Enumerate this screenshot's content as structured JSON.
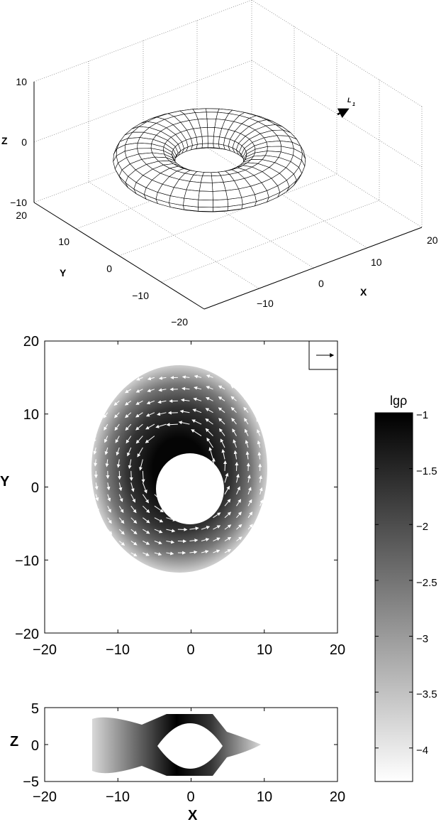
{
  "chart_data": [
    {
      "type": "surface3d",
      "xlabel": "X",
      "ylabel": "Y",
      "zlabel": "Z",
      "xlim": [
        -20,
        20
      ],
      "ylim": [
        -20,
        20
      ],
      "zlim": [
        -10,
        10
      ],
      "xticks": [
        "−10",
        "0",
        "10",
        "20"
      ],
      "yticks": [
        "20",
        "10",
        "0",
        "−10",
        "−20"
      ],
      "zticks": [
        "10",
        "0",
        "−10"
      ],
      "grid": true,
      "surface": {
        "inner_radius": 5,
        "outer_radius": 14,
        "height_range": [
          -4,
          4
        ]
      },
      "annotation": {
        "label": "L",
        "subscript": "1"
      }
    },
    {
      "type": "heatmap",
      "plane": "XY",
      "ylabel": "Y",
      "xlim": [
        -20,
        20
      ],
      "ylim": [
        -20,
        20
      ],
      "xticks": [
        "−20",
        "−10",
        "0",
        "10",
        "20"
      ],
      "yticks": [
        "20",
        "10",
        "0",
        "−10",
        "−20"
      ],
      "field": {
        "center": [
          -1.5,
          2.5
        ],
        "inner_radius": 4.5,
        "outer_radius": 13.5
      },
      "vectors": "velocity-arrows",
      "reference_arrow": true
    },
    {
      "type": "heatmap",
      "plane": "XZ",
      "xlabel": "X",
      "ylabel": "Z",
      "xlim": [
        -20,
        20
      ],
      "ylim": [
        -5,
        5
      ],
      "xticks": [
        "−20",
        "−10",
        "0",
        "10",
        "20"
      ],
      "yticks": [
        "5",
        "0",
        "−5"
      ],
      "field": {
        "inner_radius": 4.5,
        "extent_x": [
          -13,
          9
        ]
      }
    },
    {
      "type": "colorbar",
      "title": "lgρ",
      "range": [
        -4.3,
        -1
      ],
      "ticks": [
        "−1",
        "−1.5",
        "−2",
        "−2.5",
        "−3",
        "−3.5",
        "−4"
      ]
    }
  ]
}
